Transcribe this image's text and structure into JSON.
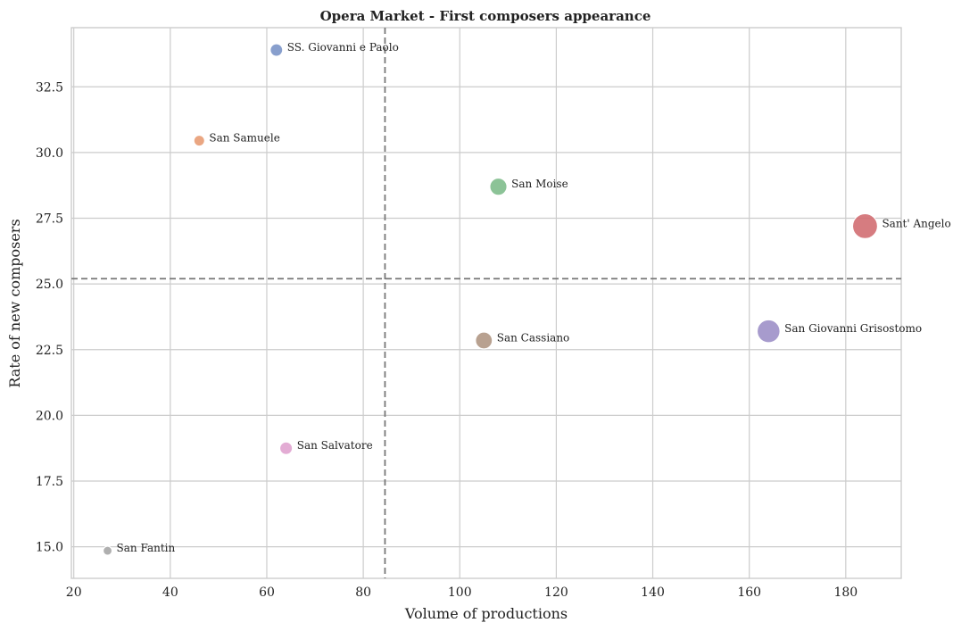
{
  "chart_data": {
    "type": "scatter",
    "title": "Opera Market - First composers appearance",
    "xlabel": "Volume of productions",
    "ylabel": "Rate of new composers",
    "xlim": [
      19.5,
      191.5
    ],
    "ylim": [
      13.8,
      34.75
    ],
    "xticks": [
      20,
      40,
      60,
      80,
      100,
      120,
      140,
      160,
      180
    ],
    "yticks": [
      15.0,
      17.5,
      20.0,
      22.5,
      25.0,
      27.5,
      30.0,
      32.5
    ],
    "grid": true,
    "legend": "none",
    "reference_lines": {
      "x_mean": 84.5,
      "y_mean": 25.2
    },
    "points": [
      {
        "label": "SS. Giovanni e Paolo",
        "x": 62,
        "y": 33.9,
        "color": "#7b95c8",
        "size": 62
      },
      {
        "label": "San Samuele",
        "x": 46,
        "y": 30.45,
        "color": "#e89c74",
        "size": 46
      },
      {
        "label": "San Moise",
        "x": 108,
        "y": 28.7,
        "color": "#7fbc8c",
        "size": 108
      },
      {
        "label": "Sant' Angelo",
        "x": 184,
        "y": 27.2,
        "color": "#d16e72",
        "size": 184
      },
      {
        "label": "San Giovanni Grisostomo",
        "x": 164,
        "y": 23.2,
        "color": "#9d90c8",
        "size": 164
      },
      {
        "label": "San Cassiano",
        "x": 105,
        "y": 22.85,
        "color": "#b09784",
        "size": 105
      },
      {
        "label": "San Salvatore",
        "x": 64,
        "y": 18.75,
        "color": "#e0a3cf",
        "size": 64
      },
      {
        "label": "San Fantin",
        "x": 27,
        "y": 14.85,
        "color": "#a6a6a6",
        "size": 27
      }
    ]
  }
}
